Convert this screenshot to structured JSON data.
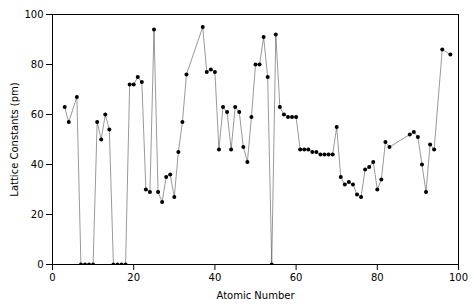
{
  "chart_data": {
    "type": "line",
    "xlabel": "Atomic Number",
    "ylabel": "Lattice Constants (pm)",
    "x": [
      3,
      4,
      6,
      7,
      8,
      9,
      10,
      11,
      12,
      13,
      14,
      15,
      16,
      17,
      18,
      19,
      20,
      21,
      22,
      23,
      24,
      25,
      26,
      27,
      28,
      29,
      30,
      31,
      32,
      33,
      37,
      38,
      39,
      40,
      41,
      42,
      43,
      44,
      45,
      46,
      47,
      48,
      49,
      50,
      51,
      52,
      53,
      54,
      55,
      56,
      57,
      58,
      59,
      60,
      61,
      62,
      63,
      64,
      65,
      66,
      67,
      68,
      69,
      70,
      71,
      72,
      73,
      74,
      75,
      76,
      77,
      78,
      79,
      80,
      81,
      82,
      83,
      88,
      89,
      90,
      91,
      92,
      93,
      94,
      96,
      98
    ],
    "values": [
      63,
      57,
      67,
      0,
      0,
      0,
      0,
      57,
      50,
      60,
      54,
      0,
      0,
      0,
      0,
      72,
      72,
      75,
      73,
      30,
      29,
      94,
      29,
      25,
      35,
      36,
      27,
      45,
      57,
      76,
      95,
      77,
      78,
      77,
      46,
      63,
      61,
      46,
      63,
      61,
      47,
      41,
      59,
      80,
      80,
      91,
      75,
      0,
      92,
      63,
      60,
      59,
      59,
      59,
      46,
      46,
      46,
      45,
      45,
      44,
      44,
      44,
      44,
      55,
      35,
      32,
      33,
      32,
      28,
      27,
      38,
      39,
      41,
      30,
      34,
      49,
      47,
      52,
      53,
      51,
      40,
      29,
      48,
      46,
      86,
      84
    ],
    "xlim": [
      0,
      100
    ],
    "ylim": [
      0,
      100
    ],
    "xticks": [
      0,
      20,
      40,
      60,
      80,
      100
    ],
    "yticks": [
      0,
      20,
      40,
      60,
      80,
      100
    ],
    "marker": "circle",
    "grid": false
  }
}
